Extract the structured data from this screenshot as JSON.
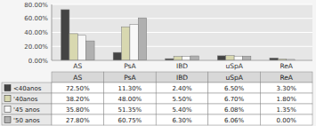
{
  "chart_data": {
    "type": "bar",
    "categories": [
      "AS",
      "PsA",
      "IBD",
      "uSpA",
      "ReA"
    ],
    "series": [
      {
        "name": "<40anos",
        "color": "#444444",
        "values": [
          72.5,
          11.3,
          2.4,
          6.5,
          3.3
        ],
        "value_labels": [
          "72.50%",
          "11.30%",
          "2.40%",
          "6.50%",
          "3.30%"
        ]
      },
      {
        "name": "'40anos",
        "color": "#d8d8b0",
        "values": [
          38.2,
          48.0,
          5.5,
          6.7,
          1.8
        ],
        "value_labels": [
          "38.20%",
          "48.00%",
          "5.50%",
          "6.70%",
          "1.80%"
        ]
      },
      {
        "name": "'45 anos",
        "color": "#f8f8f8",
        "values": [
          35.8,
          51.35,
          5.4,
          6.08,
          1.35
        ],
        "value_labels": [
          "35.80%",
          "51.35%",
          "5.40%",
          "6.08%",
          "1.35%"
        ]
      },
      {
        "name": "'50 anos",
        "color": "#b0b0b0",
        "values": [
          27.8,
          60.75,
          6.3,
          6.06,
          0.0
        ],
        "value_labels": [
          "27.80%",
          "60.75%",
          "6.30%",
          "6.06%",
          "0.00%"
        ]
      }
    ],
    "ylim": [
      0,
      80
    ],
    "yticks": [
      {
        "value": 0,
        "label": "0.00%"
      },
      {
        "value": 20,
        "label": "20.00%"
      },
      {
        "value": 40,
        "label": "40.00%"
      },
      {
        "value": 60,
        "label": "60.00%"
      },
      {
        "value": 80,
        "label": "80.00%"
      }
    ],
    "grid": true
  }
}
